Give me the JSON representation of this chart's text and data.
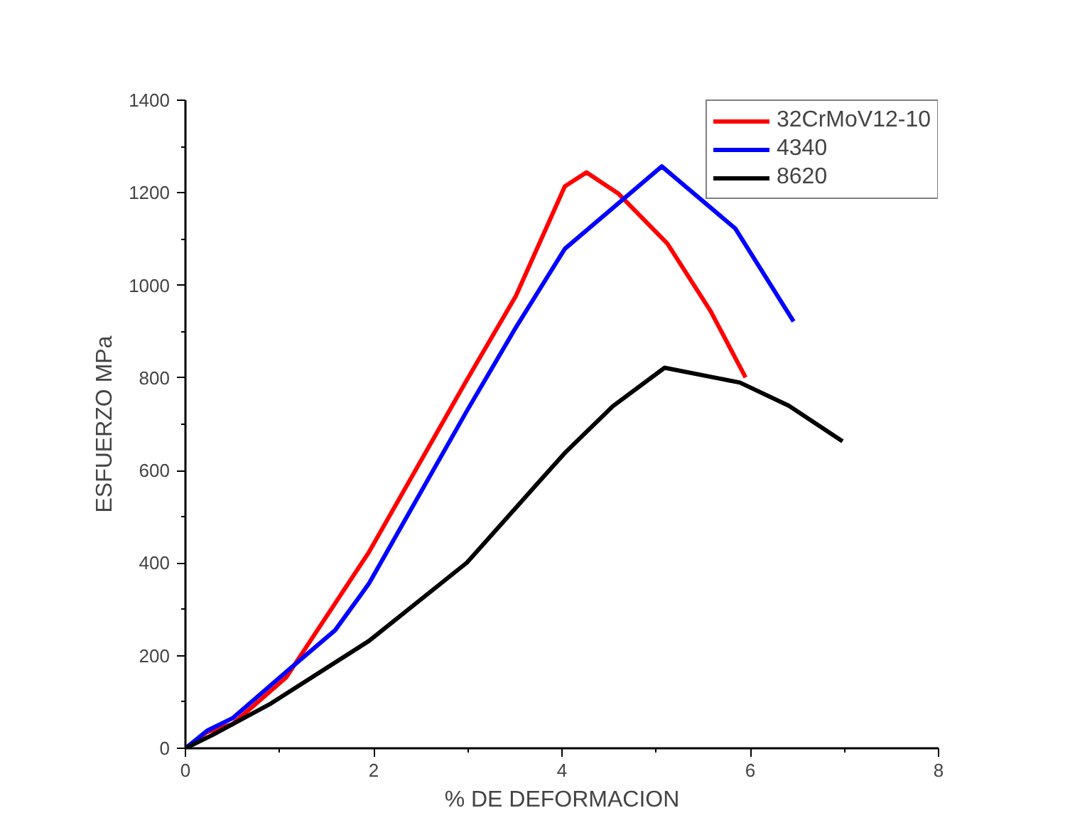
{
  "chart_data": {
    "type": "line",
    "xlabel": "% DE DEFORMACION",
    "ylabel": "ESFUERZO MPa",
    "xlim": [
      0,
      8
    ],
    "ylim": [
      0,
      1400
    ],
    "xticks": [
      0,
      2,
      4,
      6,
      8
    ],
    "yticks": [
      0,
      200,
      400,
      600,
      800,
      1000,
      1200,
      1400
    ],
    "grid": false,
    "legend": "top right",
    "marker": "none",
    "line_style": "solid",
    "series": [
      {
        "name": "32CrMoV12-10",
        "color": "#ff0000",
        "x": [
          0,
          0.23,
          0.5,
          1.07,
          1.95,
          2.99,
          3.51,
          4.03,
          4.26,
          4.6,
          5.12,
          5.58,
          5.95
        ],
        "values": [
          0,
          35,
          52,
          153,
          424,
          796,
          977,
          1214,
          1244,
          1198,
          1090,
          944,
          801
        ]
      },
      {
        "name": "4340",
        "color": "#0000ff",
        "x": [
          0,
          0.23,
          0.5,
          1.07,
          1.59,
          1.95,
          2.99,
          3.51,
          4.03,
          5.06,
          5.84,
          6.46
        ],
        "values": [
          0,
          38,
          65,
          165,
          255,
          356,
          729,
          909,
          1079,
          1257,
          1123,
          922
        ]
      },
      {
        "name": "8620",
        "color": "#000000",
        "x": [
          0,
          0.29,
          0.91,
          1.95,
          2.99,
          4.03,
          4.54,
          5.09,
          5.89,
          6.41,
          6.98
        ],
        "values": [
          0,
          29,
          97,
          232,
          401,
          638,
          739,
          822,
          790,
          740,
          663
        ]
      }
    ]
  }
}
